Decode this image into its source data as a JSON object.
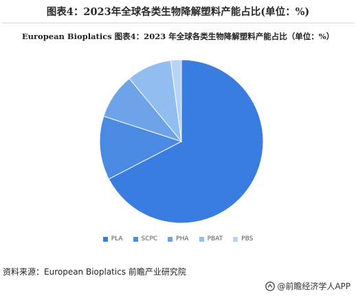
{
  "header": {
    "title": "图表4：2023年全球各类生物降解塑料产能占比(单位：%)"
  },
  "chart_data": {
    "type": "pie",
    "title": "European Bioplatics  图表4：2023 年全球各类生物降解塑料产能占比（单位：%）",
    "series": [
      {
        "name": "PLA",
        "value": 67.4,
        "color": "#3a7de0"
      },
      {
        "name": "SCPC",
        "value": 12.6,
        "color": "#4b8ae3"
      },
      {
        "name": "PHA",
        "value": 9.0,
        "color": "#6ea3ea"
      },
      {
        "name": "PBAT",
        "value": 8.9,
        "color": "#92bdf0"
      },
      {
        "name": "PBS",
        "value": 2.1,
        "color": "#b7d3f5"
      }
    ],
    "legend_position": "bottom"
  },
  "footer": {
    "source": "资料来源：European Bioplatics 前瞻产业研究院",
    "brand": "@前瞻经济学人APP"
  }
}
